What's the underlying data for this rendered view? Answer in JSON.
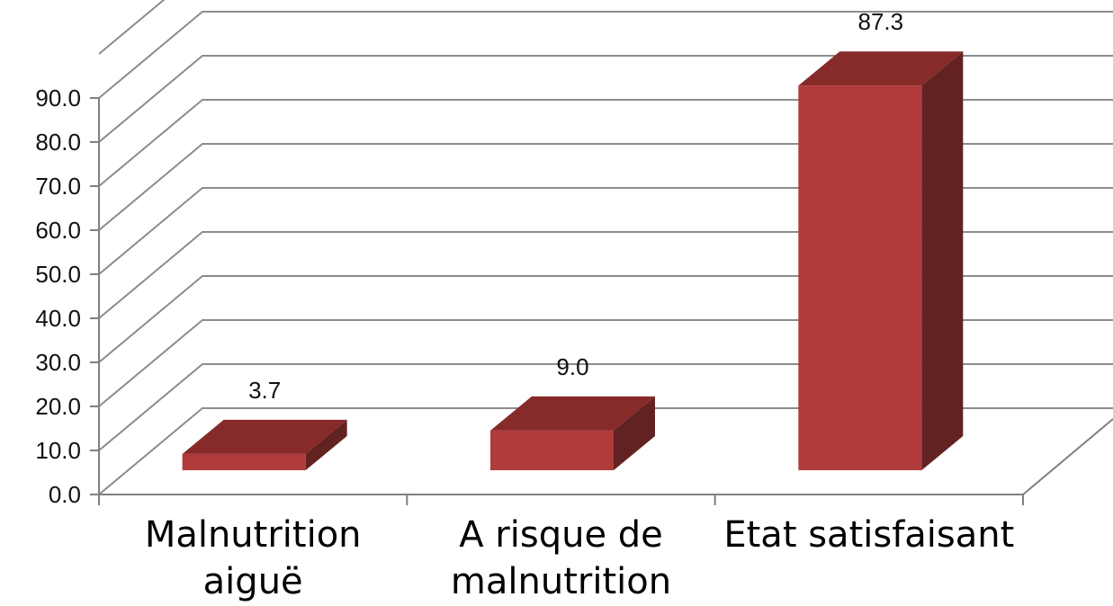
{
  "chart_data": {
    "type": "bar",
    "categories": [
      "Malnutrition aiguë",
      "A risque de malnutrition",
      "Etat satisfaisant"
    ],
    "category_lines": [
      [
        "Malnutrition",
        "aiguë"
      ],
      [
        "A risque de",
        "malnutrition"
      ],
      [
        "Etat satisfaisant"
      ]
    ],
    "values": [
      3.7,
      9.0,
      87.3
    ],
    "data_labels": [
      "3.7",
      "9.0",
      "87.3"
    ],
    "y_ticks": [
      "0.0",
      "10.0",
      "20.0",
      "30.0",
      "40.0",
      "50.0",
      "60.0",
      "70.0",
      "80.0",
      "90.0"
    ],
    "ylim": [
      0,
      90
    ],
    "grid": true,
    "three_d": true,
    "colors": {
      "bar_front": "#b03b3b",
      "bar_top": "#862a2a",
      "bar_side": "#632222",
      "gridline": "#8c8c8c",
      "axis": "#7f7f7f"
    }
  }
}
